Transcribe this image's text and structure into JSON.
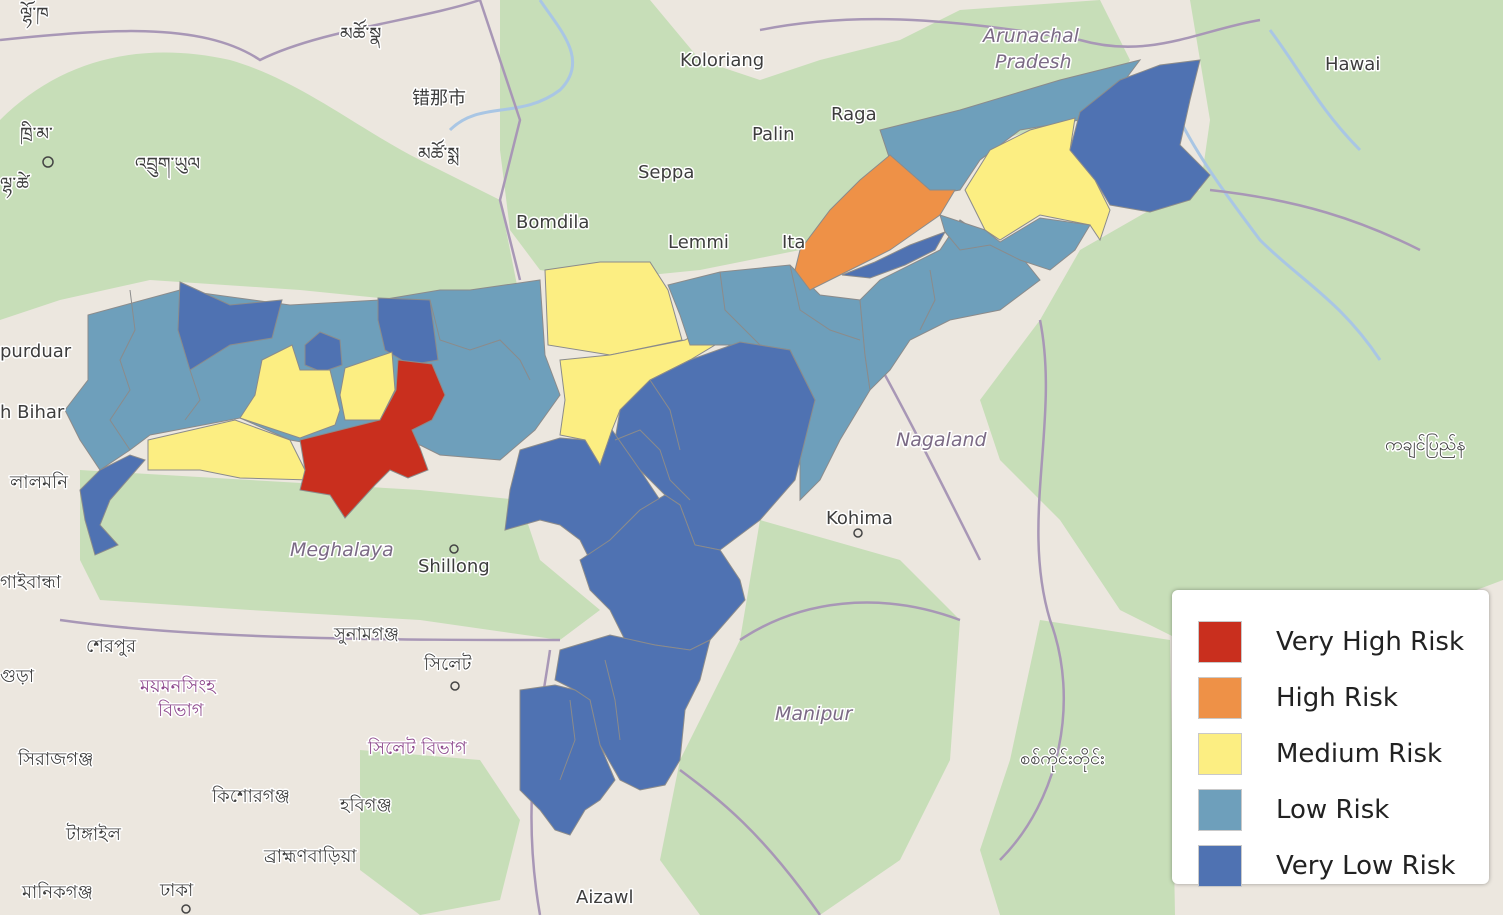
{
  "colors": {
    "very_high": "#c92f1e",
    "high": "#ee9147",
    "medium": "#fcee82",
    "low": "#6e9fbb",
    "very_low": "#4f72b2",
    "forest": "#c7deb8",
    "land": "#ece7df",
    "border": "#9d8ea6",
    "water": "#a9c6e4"
  },
  "legend": [
    {
      "label": "Very High Risk",
      "color": "#c92f1e"
    },
    {
      "label": "High Risk",
      "color": "#ee9147"
    },
    {
      "label": "Medium Risk",
      "color": "#fcee82"
    },
    {
      "label": "Low Risk",
      "color": "#6e9fbb"
    },
    {
      "label": "Very Low Risk",
      "color": "#4f72b2"
    }
  ],
  "places": {
    "koloriang": "Koloriang",
    "arunachal_1": "Arunachal",
    "arunachal_2": "Pradesh",
    "hawai": "Hawai",
    "raga": "Raga",
    "palin": "Palin",
    "seppa": "Seppa",
    "bomdila": "Bomdila",
    "lemmi": "Lemmi",
    "itanagar": "Ita",
    "nagaland": "Nagaland",
    "kohima": "Kohima",
    "meghalaya": "Meghalaya",
    "shillong": "Shillong",
    "manipur": "Manipur",
    "aizawl": "Aizawl",
    "purduar": "purduar",
    "bihar": "h Bihar",
    "lalmonirhat": "লালমনি",
    "gaibandha": "গাইবান্ধা",
    "sherpur": "শেরপুর",
    "sunamganj": "সুনামগঞ্জ",
    "sylhet": "সিলেট",
    "mymensingh_1": "ময়মনসিংহ",
    "mymensingh_2": "বিভাগ",
    "sylhet_div": "সিলেট বিভাগ",
    "sirajganj": "সিরাজগঞ্জ",
    "kishoreganj": "কিশোরগঞ্জ",
    "habiganj": "হবিগঞ্জ",
    "tangail": "টাঙ্গাইল",
    "brahmanbaria": "ব্রাহ্মণবাড়িয়া",
    "manikganj": "মানিকগঞ্জ",
    "dhaka": "ঢাকা",
    "bogra": "গুড়া",
    "kachin": "ကချင်ပြည်န",
    "sagaing": "စစ်ကိုင်းတိုင်း",
    "tibet_1": "ལྷོ་ཁ",
    "tibet_2": "མཚོ་སྣ",
    "tibet_3": "ཁྲི་མ་",
    "tibet_4": "འབྲུག་ཡུལ",
    "tibet_5": "མཚོ་སྨ",
    "tibet_6": "ལྷ་ཚེ",
    "cuona": "错那市"
  }
}
